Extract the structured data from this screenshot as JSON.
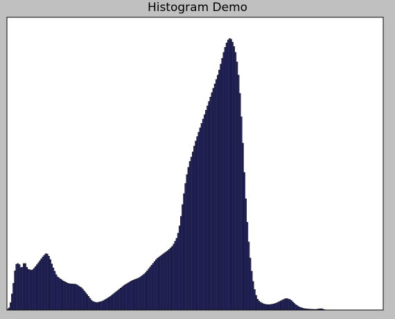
{
  "chart_data": {
    "type": "bar",
    "title": "Histogram Demo",
    "xlabel": "",
    "ylabel": "",
    "xlim": [
      0,
      256
    ],
    "ylim": [
      0,
      1.0
    ],
    "x_ticks_visible": false,
    "y_ticks_visible": false,
    "grid": false,
    "bar_color": "#2b2b6e",
    "bar_edge_color": "#000000",
    "background_color": "#ffffff",
    "axes_frame_color": "#000000",
    "keypoints": [
      [
        0,
        0.0
      ],
      [
        2,
        0.01
      ],
      [
        4,
        0.07
      ],
      [
        6,
        0.155
      ],
      [
        8,
        0.16
      ],
      [
        10,
        0.14
      ],
      [
        12,
        0.165
      ],
      [
        14,
        0.14
      ],
      [
        17,
        0.135
      ],
      [
        19,
        0.145
      ],
      [
        22,
        0.165
      ],
      [
        25,
        0.185
      ],
      [
        27,
        0.195
      ],
      [
        29,
        0.18
      ],
      [
        31,
        0.15
      ],
      [
        34,
        0.115
      ],
      [
        38,
        0.1
      ],
      [
        42,
        0.09
      ],
      [
        47,
        0.088
      ],
      [
        51,
        0.075
      ],
      [
        55,
        0.05
      ],
      [
        58,
        0.03
      ],
      [
        61,
        0.025
      ],
      [
        65,
        0.03
      ],
      [
        70,
        0.045
      ],
      [
        75,
        0.065
      ],
      [
        80,
        0.085
      ],
      [
        85,
        0.1
      ],
      [
        90,
        0.11
      ],
      [
        94,
        0.125
      ],
      [
        98,
        0.15
      ],
      [
        102,
        0.175
      ],
      [
        106,
        0.19
      ],
      [
        110,
        0.205
      ],
      [
        113,
        0.22
      ],
      [
        116,
        0.25
      ],
      [
        118,
        0.3
      ],
      [
        120,
        0.38
      ],
      [
        122,
        0.45
      ],
      [
        124,
        0.5
      ],
      [
        126,
        0.53
      ],
      [
        128,
        0.57
      ],
      [
        130,
        0.6
      ],
      [
        132,
        0.63
      ],
      [
        134,
        0.66
      ],
      [
        136,
        0.69
      ],
      [
        138,
        0.72
      ],
      [
        140,
        0.75
      ],
      [
        142,
        0.78
      ],
      [
        144,
        0.81
      ],
      [
        146,
        0.85
      ],
      [
        148,
        0.89
      ],
      [
        150,
        0.92
      ],
      [
        152,
        0.93
      ],
      [
        154,
        0.91
      ],
      [
        156,
        0.87
      ],
      [
        158,
        0.78
      ],
      [
        160,
        0.62
      ],
      [
        162,
        0.42
      ],
      [
        164,
        0.26
      ],
      [
        166,
        0.15
      ],
      [
        168,
        0.08
      ],
      [
        170,
        0.04
      ],
      [
        172,
        0.028
      ],
      [
        175,
        0.02
      ],
      [
        178,
        0.018
      ],
      [
        181,
        0.02
      ],
      [
        184,
        0.025
      ],
      [
        187,
        0.033
      ],
      [
        190,
        0.04
      ],
      [
        193,
        0.035
      ],
      [
        196,
        0.02
      ],
      [
        199,
        0.01
      ],
      [
        202,
        0.005
      ],
      [
        206,
        0.003
      ],
      [
        210,
        0.002
      ],
      [
        214,
        0.005
      ],
      [
        216,
        0.001
      ],
      [
        220,
        0.0
      ],
      [
        256,
        0.0
      ]
    ]
  }
}
